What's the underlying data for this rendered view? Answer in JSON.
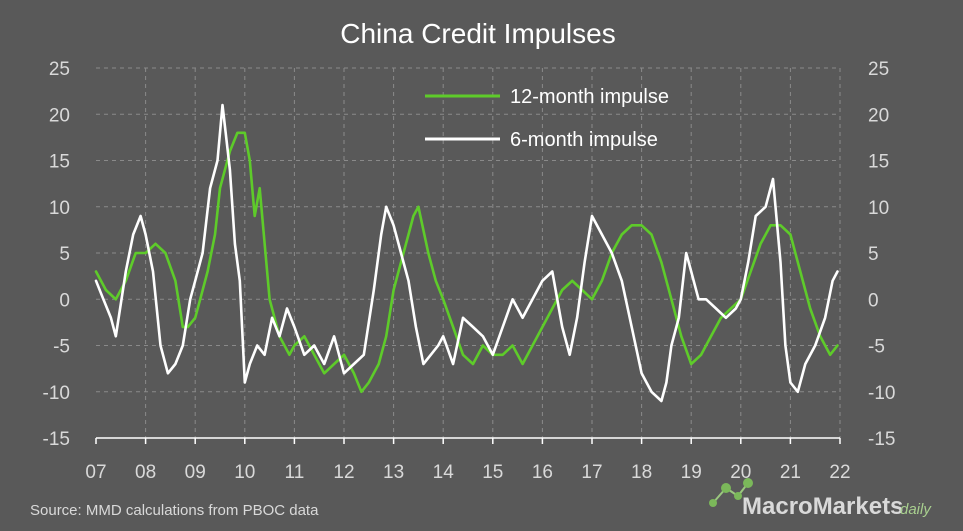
{
  "chart_data": {
    "type": "line",
    "title": "China Credit Impulses",
    "source": "Source:  MMD  calculations  from  PBOC  data",
    "logo": {
      "main": "MacroMarkets",
      "suffix": "daily"
    },
    "xlabel": "",
    "ylabel": "",
    "xlim": [
      2007,
      2022
    ],
    "ylim": [
      -15,
      25
    ],
    "x_ticks": [
      2007,
      2008,
      2009,
      2010,
      2011,
      2012,
      2013,
      2014,
      2015,
      2016,
      2017,
      2018,
      2019,
      2020,
      2021,
      2022
    ],
    "x_tick_labels": [
      "07",
      "08",
      "09",
      "10",
      "11",
      "12",
      "13",
      "14",
      "15",
      "16",
      "17",
      "18",
      "19",
      "20",
      "21",
      "22"
    ],
    "y_ticks": [
      25,
      20,
      15,
      10,
      5,
      0,
      -5,
      -10,
      -15
    ],
    "y_tick_labels": [
      "25",
      "20",
      "15",
      "10",
      "5",
      "0",
      "-5",
      "-10",
      "-15"
    ],
    "grid": true,
    "legend_position": "top-center",
    "series": [
      {
        "name": "12-month impulse",
        "color": "#5ecb2a",
        "x": [
          2007.0,
          2007.2,
          2007.4,
          2007.6,
          2007.8,
          2008.0,
          2008.2,
          2008.4,
          2008.6,
          2008.75,
          2008.85,
          2009.0,
          2009.1,
          2009.25,
          2009.4,
          2009.5,
          2009.7,
          2009.85,
          2010.0,
          2010.1,
          2010.2,
          2010.3,
          2010.5,
          2010.7,
          2010.9,
          2011.0,
          2011.2,
          2011.4,
          2011.6,
          2011.8,
          2012.0,
          2012.2,
          2012.35,
          2012.5,
          2012.7,
          2012.85,
          2013.0,
          2013.15,
          2013.3,
          2013.4,
          2013.5,
          2013.7,
          2013.85,
          2014.0,
          2014.2,
          2014.4,
          2014.6,
          2014.8,
          2015.0,
          2015.2,
          2015.4,
          2015.6,
          2015.8,
          2016.0,
          2016.2,
          2016.4,
          2016.6,
          2016.8,
          2017.0,
          2017.2,
          2017.4,
          2017.6,
          2017.8,
          2018.0,
          2018.2,
          2018.4,
          2018.6,
          2018.8,
          2019.0,
          2019.2,
          2019.4,
          2019.6,
          2019.8,
          2020.0,
          2020.2,
          2020.4,
          2020.6,
          2020.8,
          2021.0,
          2021.2,
          2021.4,
          2021.6,
          2021.8,
          2021.95
        ],
        "values": [
          3,
          1,
          0,
          2,
          5,
          5,
          6,
          5,
          2,
          -3,
          -3,
          -2,
          0,
          3,
          7,
          12,
          16,
          18,
          18,
          15,
          9,
          12,
          0,
          -4,
          -6,
          -5,
          -4,
          -6,
          -8,
          -7,
          -6,
          -8,
          -10,
          -9,
          -7,
          -4,
          1,
          4,
          7,
          9,
          10,
          5,
          2,
          0,
          -3,
          -6,
          -7,
          -5,
          -6,
          -6,
          -5,
          -7,
          -5,
          -3,
          -1,
          1,
          2,
          1,
          0,
          2,
          5,
          7,
          8,
          8,
          7,
          4,
          0,
          -4,
          -7,
          -6,
          -4,
          -2,
          -1,
          0,
          3,
          6,
          8,
          8,
          7,
          3,
          -1,
          -4,
          -6,
          -5
        ]
      },
      {
        "name": "6-month impulse",
        "color": "#ffffff",
        "x": [
          2007.0,
          2007.15,
          2007.3,
          2007.4,
          2007.6,
          2007.75,
          2007.9,
          2008.0,
          2008.15,
          2008.3,
          2008.45,
          2008.6,
          2008.75,
          2008.9,
          2009.0,
          2009.15,
          2009.3,
          2009.45,
          2009.55,
          2009.7,
          2009.8,
          2009.9,
          2010.0,
          2010.1,
          2010.25,
          2010.4,
          2010.55,
          2010.7,
          2010.85,
          2011.0,
          2011.2,
          2011.4,
          2011.6,
          2011.8,
          2012.0,
          2012.2,
          2012.4,
          2012.6,
          2012.75,
          2012.85,
          2013.0,
          2013.15,
          2013.3,
          2013.45,
          2013.6,
          2013.75,
          2013.9,
          2014.0,
          2014.2,
          2014.4,
          2014.6,
          2014.8,
          2015.0,
          2015.2,
          2015.4,
          2015.6,
          2015.8,
          2016.0,
          2016.2,
          2016.4,
          2016.55,
          2016.7,
          2016.85,
          2017.0,
          2017.2,
          2017.4,
          2017.6,
          2017.8,
          2018.0,
          2018.2,
          2018.4,
          2018.5,
          2018.6,
          2018.75,
          2018.9,
          2019.0,
          2019.15,
          2019.3,
          2019.5,
          2019.7,
          2019.9,
          2020.0,
          2020.15,
          2020.3,
          2020.5,
          2020.65,
          2020.8,
          2020.9,
          2021.0,
          2021.15,
          2021.3,
          2021.5,
          2021.7,
          2021.85,
          2021.95
        ],
        "values": [
          2,
          0,
          -2,
          -4,
          3,
          7,
          9,
          7,
          3,
          -5,
          -8,
          -7,
          -5,
          0,
          2,
          5,
          12,
          15,
          21,
          14,
          6,
          2,
          -9,
          -7,
          -5,
          -6,
          -2,
          -4,
          -1,
          -3,
          -6,
          -5,
          -7,
          -4,
          -8,
          -7,
          -6,
          1,
          7,
          10,
          8,
          5,
          2,
          -3,
          -7,
          -6,
          -5,
          -4,
          -7,
          -2,
          -3,
          -4,
          -6,
          -3,
          0,
          -2,
          0,
          2,
          3,
          -3,
          -6,
          -2,
          4,
          9,
          7,
          5,
          2,
          -3,
          -8,
          -10,
          -11,
          -9,
          -5,
          -2,
          5,
          3,
          0,
          0,
          -1,
          -2,
          -1,
          0,
          4,
          9,
          10,
          13,
          4,
          -5,
          -9,
          -10,
          -7,
          -5,
          -2,
          2,
          3
        ]
      }
    ]
  }
}
